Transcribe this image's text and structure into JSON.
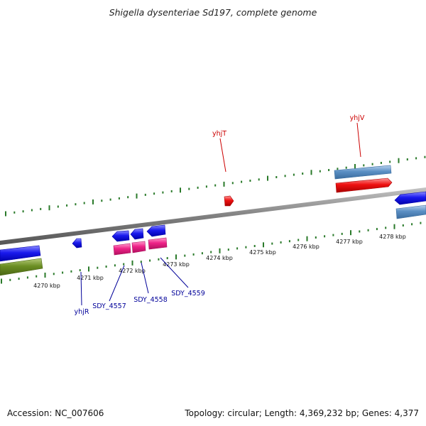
{
  "title": "Shigella dysenteriae Sd197, complete genome",
  "footer": {
    "accession": "Accession: NC_007606",
    "topology": "Topology: circular; Length: 4,369,232 bp; Genes: 4,377"
  },
  "colors": {
    "backbone": "#888888",
    "tick": "#2a7a2a",
    "forward_gene": "#ee1111",
    "reverse_gene": "#1111dd",
    "cds_steel": "#5b8fc4",
    "cds_olive": "#6b8e23",
    "cds_pink": "#ee2288",
    "label_red": "#cc0000",
    "label_blue": "#000099"
  },
  "scale": {
    "unit": "kbp",
    "labels": [
      "4270 kbp",
      "4271 kbp",
      "4272 kbp",
      "4273 kbp",
      "4274 kbp",
      "4275 kbp",
      "4276 kbp",
      "4277 kbp",
      "4278 kbp"
    ]
  },
  "genes": [
    {
      "name": "yhjT",
      "strand": "+"
    },
    {
      "name": "yhjV",
      "strand": "+"
    },
    {
      "name": "yhjR",
      "strand": "-"
    },
    {
      "name": "SDY_4557",
      "strand": "-"
    },
    {
      "name": "SDY_4558",
      "strand": "-"
    },
    {
      "name": "SDY_4559",
      "strand": "-"
    }
  ]
}
